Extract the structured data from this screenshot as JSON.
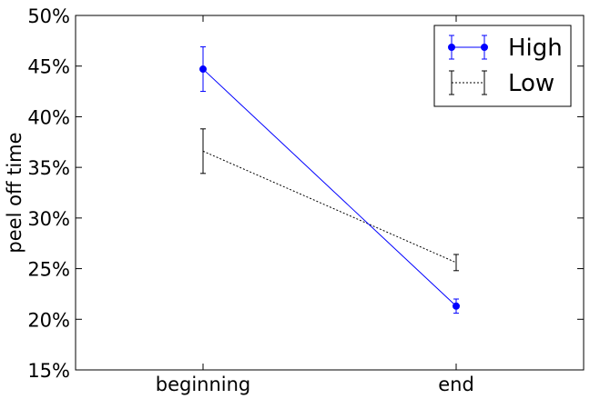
{
  "chart_data": {
    "type": "line",
    "categories": [
      "beginning",
      "end"
    ],
    "ylabel": "peel off time",
    "ylim": [
      0.15,
      0.5
    ],
    "yticks": [
      0.15,
      0.2,
      0.25,
      0.3,
      0.35,
      0.4,
      0.45,
      0.5
    ],
    "ytick_labels": [
      "15%",
      "20%",
      "25%",
      "30%",
      "35%",
      "40%",
      "45%",
      "50%"
    ],
    "grid": false,
    "legend": {
      "placement": "top-right"
    },
    "series": [
      {
        "name": "High",
        "color": "#0000ff",
        "line_style": "solid",
        "marker": "circle",
        "values": [
          0.447,
          0.213
        ],
        "errors": [
          0.022,
          0.007
        ]
      },
      {
        "name": "Low",
        "color": "#000000",
        "line_style": "dotted",
        "marker": "none",
        "values": [
          0.366,
          0.256
        ],
        "errors": [
          0.022,
          0.008
        ]
      }
    ]
  }
}
